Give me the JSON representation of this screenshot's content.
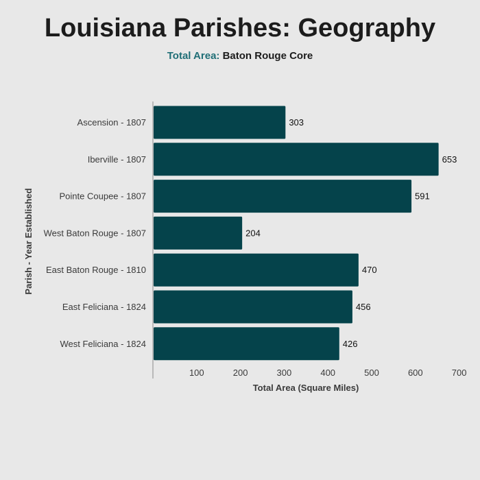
{
  "header": {
    "title": "Louisiana Parishes: Geography",
    "subtitle_prefix": "Total Area:",
    "subtitle_rest": "Baton Rouge Core"
  },
  "colors": {
    "bar": "#05434b",
    "accent": "#1f6e76",
    "background": "#e8e8e8"
  },
  "chart_data": {
    "type": "bar",
    "orientation": "horizontal",
    "categories": [
      "Ascension - 1807",
      "Iberville - 1807",
      "Pointe Coupee - 1807",
      "West Baton Rouge - 1807",
      "East Baton Rouge - 1810",
      "East Feliciana - 1824",
      "West Feliciana - 1824"
    ],
    "values": [
      303,
      653,
      591,
      204,
      470,
      456,
      426
    ],
    "xlabel": "Total Area (Square Miles)",
    "ylabel": "Parish - Year Established",
    "xlim": [
      0,
      700
    ],
    "xticks": [
      100,
      200,
      300,
      400,
      500,
      600,
      700
    ],
    "grid": false,
    "legend": "none"
  }
}
